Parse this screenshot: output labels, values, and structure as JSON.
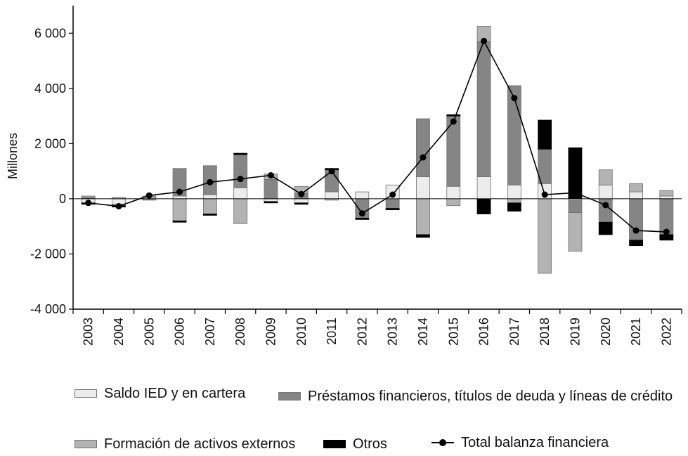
{
  "chart_data": {
    "type": "bar",
    "stacked": true,
    "ylabel": "Millones",
    "ylim": [
      -4000,
      7000
    ],
    "yticks": [
      6000,
      4000,
      2000,
      0,
      -2000,
      -4000
    ],
    "ytick_labels": [
      "6 000",
      "4 000",
      "2 000",
      "0",
      "-2 000",
      "-4 000"
    ],
    "categories": [
      "2003",
      "2004",
      "2005",
      "2006",
      "2007",
      "2008",
      "2009",
      "2010",
      "2011",
      "2012",
      "2013",
      "2014",
      "2015",
      "2016",
      "2017",
      "2018",
      "2019",
      "2020",
      "2021",
      "2022"
    ],
    "series": [
      {
        "name": "Saldo IED y en cartera",
        "color": "#ececec",
        "values": [
          -150,
          -200,
          50,
          100,
          150,
          400,
          -100,
          -150,
          250,
          250,
          500,
          800,
          450,
          800,
          500,
          550,
          -50,
          500,
          250,
          100
        ]
      },
      {
        "name": "Préstamos financieros, títulos de deuda y líneas de crédito",
        "color": "#858585",
        "values": [
          50,
          -50,
          -50,
          1000,
          1050,
          1200,
          700,
          200,
          800,
          -700,
          -350,
          2100,
          2550,
          4900,
          3600,
          1250,
          -450,
          -850,
          -1500,
          -1300
        ]
      },
      {
        "name": "Formación de activos externos",
        "color": "#b3b3b3",
        "values": [
          50,
          50,
          50,
          -800,
          -550,
          -900,
          200,
          250,
          -50,
          0,
          0,
          -1300,
          -250,
          550,
          -150,
          -2700,
          -1400,
          550,
          300,
          200
        ]
      },
      {
        "name": "Otros",
        "color": "#000000",
        "values": [
          -50,
          -50,
          0,
          -50,
          -50,
          50,
          -50,
          -50,
          50,
          -50,
          -50,
          -100,
          50,
          -550,
          -300,
          1050,
          1850,
          -450,
          -200,
          -200
        ]
      }
    ],
    "line": {
      "name": "Total balanza financiera",
      "color": "#000000",
      "values": [
        -150,
        -270,
        120,
        250,
        600,
        720,
        850,
        170,
        1000,
        -530,
        150,
        1500,
        2800,
        5720,
        3650,
        150,
        220,
        -230,
        -1150,
        -1200
      ]
    }
  },
  "legend": {
    "saldo": "Saldo IED y en cartera",
    "prestamos": "Préstamos financieros, títulos de deuda y líneas de crédito",
    "formacion": "Formación de activos externos",
    "otros": "Otros",
    "total": "Total balanza financiera"
  }
}
